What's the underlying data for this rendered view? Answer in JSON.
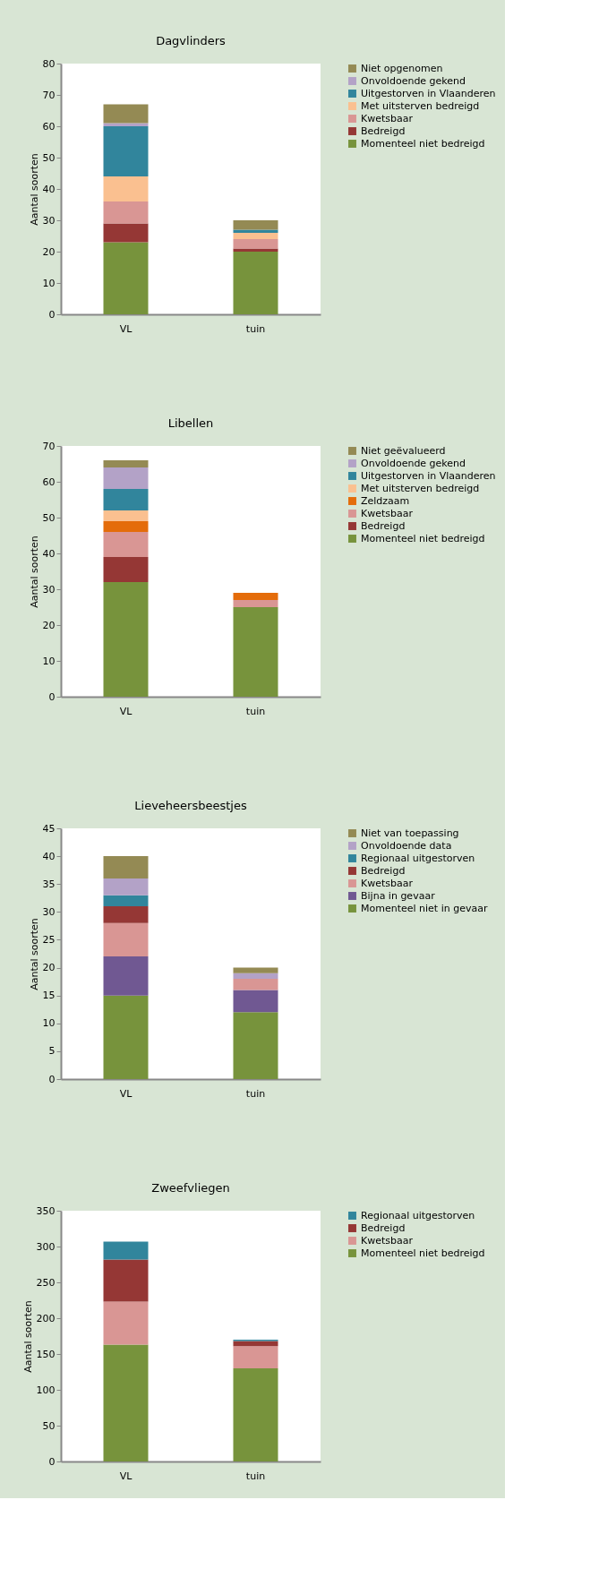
{
  "chart_data": [
    {
      "type": "bar",
      "title": "Dagvlinders",
      "ylabel": "Aantal soorten",
      "categories": [
        "VL",
        "tuin"
      ],
      "stacked": true,
      "ylim": [
        0,
        80
      ],
      "yticks": [
        0,
        10,
        20,
        30,
        40,
        50,
        60,
        70,
        80
      ],
      "grid": false,
      "legend": "right",
      "series": [
        {
          "name": "Momenteel niet bedreigd",
          "color": "#77933c",
          "values": [
            23,
            20
          ]
        },
        {
          "name": "Bedreigd",
          "color": "#953735",
          "values": [
            6,
            1
          ]
        },
        {
          "name": "Kwetsbaar",
          "color": "#d99694",
          "values": [
            7,
            3
          ]
        },
        {
          "name": "Met uitsterven bedreigd",
          "color": "#fac090",
          "values": [
            8,
            2
          ]
        },
        {
          "name": "Uitgestorven in Vlaanderen",
          "color": "#31859c",
          "values": [
            16,
            1
          ]
        },
        {
          "name": "Onvoldoende gekend",
          "color": "#b3a2c7",
          "values": [
            1,
            0
          ]
        },
        {
          "name": "Niet opgenomen",
          "color": "#948a54",
          "values": [
            6,
            3
          ]
        }
      ]
    },
    {
      "type": "bar",
      "title": "Libellen",
      "ylabel": "Aantal soorten",
      "categories": [
        "VL",
        "tuin"
      ],
      "stacked": true,
      "ylim": [
        0,
        70
      ],
      "yticks": [
        0,
        10,
        20,
        30,
        40,
        50,
        60,
        70
      ],
      "grid": false,
      "legend": "right",
      "series": [
        {
          "name": "Momenteel niet bedreigd",
          "color": "#77933c",
          "values": [
            32,
            25
          ]
        },
        {
          "name": "Bedreigd",
          "color": "#953735",
          "values": [
            7,
            0
          ]
        },
        {
          "name": "Kwetsbaar",
          "color": "#d99694",
          "values": [
            7,
            2
          ]
        },
        {
          "name": "Zeldzaam",
          "color": "#e46c0a",
          "values": [
            3,
            2
          ]
        },
        {
          "name": "Met uitsterven bedreigd",
          "color": "#fac090",
          "values": [
            3,
            0
          ]
        },
        {
          "name": "Uitgestorven in Vlaanderen",
          "color": "#31859c",
          "values": [
            6,
            0
          ]
        },
        {
          "name": "Onvoldoende gekend",
          "color": "#b3a2c7",
          "values": [
            6,
            0
          ]
        },
        {
          "name": "Niet geëvalueerd",
          "color": "#948a54",
          "values": [
            2,
            0
          ]
        }
      ]
    },
    {
      "type": "bar",
      "title": "Lieveheersbeestjes",
      "ylabel": "Aantal soorten",
      "categories": [
        "VL",
        "tuin"
      ],
      "stacked": true,
      "ylim": [
        0,
        45
      ],
      "yticks": [
        0,
        5,
        10,
        15,
        20,
        25,
        30,
        35,
        40,
        45
      ],
      "grid": false,
      "legend": "right",
      "series": [
        {
          "name": "Momenteel niet in gevaar",
          "color": "#77933c",
          "values": [
            15,
            12
          ]
        },
        {
          "name": "Bijna in gevaar",
          "color": "#705892",
          "values": [
            7,
            4
          ]
        },
        {
          "name": "Kwetsbaar",
          "color": "#d99694",
          "values": [
            6,
            2
          ]
        },
        {
          "name": "Bedreigd",
          "color": "#953735",
          "values": [
            3,
            0
          ]
        },
        {
          "name": "Regionaal uitgestorven",
          "color": "#31859c",
          "values": [
            2,
            0
          ]
        },
        {
          "name": "Onvoldoende data",
          "color": "#b3a2c7",
          "values": [
            3,
            1
          ]
        },
        {
          "name": "Niet van toepassing",
          "color": "#948a54",
          "values": [
            4,
            1
          ]
        }
      ]
    },
    {
      "type": "bar",
      "title": "Zweefvliegen",
      "ylabel": "Aantal soorten",
      "categories": [
        "VL",
        "tuin"
      ],
      "stacked": true,
      "ylim": [
        0,
        350
      ],
      "yticks": [
        0,
        50,
        100,
        150,
        200,
        250,
        300,
        350
      ],
      "grid": false,
      "legend": "right",
      "series": [
        {
          "name": "Momenteel niet bedreigd",
          "color": "#77933c",
          "values": [
            163,
            130
          ]
        },
        {
          "name": "Kwetsbaar",
          "color": "#d99694",
          "values": [
            60,
            31
          ]
        },
        {
          "name": "Bedreigd",
          "color": "#953735",
          "values": [
            59,
            7
          ]
        },
        {
          "name": "Regionaal uitgestorven",
          "color": "#31859c",
          "values": [
            25,
            2
          ]
        }
      ]
    }
  ]
}
